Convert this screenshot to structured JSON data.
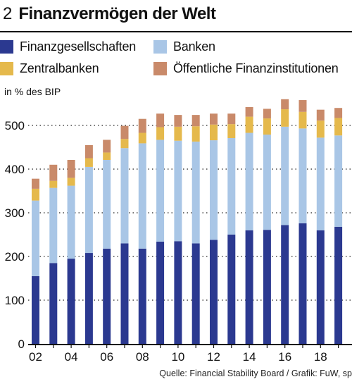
{
  "header": {
    "number": "2",
    "title": "Finanzvermögen der Welt"
  },
  "unit_label": "in % des BIP",
  "source": "Quelle: Financial Stability Board  / Grafik: FuW, sp",
  "chart_data": {
    "type": "bar",
    "stacked": true,
    "title": "Finanzvermögen der Welt",
    "ylabel": "in % des BIP",
    "ylim": [
      0,
      550
    ],
    "yticks": [
      0,
      100,
      200,
      300,
      400,
      500
    ],
    "grid": "horizontal dotted",
    "legend_position": "top",
    "categories": [
      "2002",
      "2003",
      "2004",
      "2005",
      "2006",
      "2007",
      "2008",
      "2009",
      "2010",
      "2011",
      "2012",
      "2013",
      "2014",
      "2015",
      "2016",
      "2017",
      "2018",
      "2019"
    ],
    "x_tick_labels": [
      {
        "index": 0,
        "label": "02"
      },
      {
        "index": 2,
        "label": "04"
      },
      {
        "index": 4,
        "label": "06"
      },
      {
        "index": 6,
        "label": "08"
      },
      {
        "index": 8,
        "label": "10"
      },
      {
        "index": 10,
        "label": "12"
      },
      {
        "index": 12,
        "label": "14"
      },
      {
        "index": 14,
        "label": "16"
      },
      {
        "index": 16,
        "label": "18"
      }
    ],
    "series": [
      {
        "name": "Finanzgesellschaften",
        "color": "#2b3990",
        "values": [
          155,
          185,
          195,
          208,
          218,
          230,
          218,
          234,
          235,
          230,
          238,
          250,
          260,
          261,
          272,
          276,
          260,
          268
        ]
      },
      {
        "name": "Banken",
        "color": "#a9c6e6",
        "values": [
          173,
          172,
          167,
          197,
          203,
          218,
          241,
          233,
          230,
          233,
          228,
          221,
          223,
          218,
          225,
          217,
          212,
          209
        ]
      },
      {
        "name": "Zentralbanken",
        "color": "#e5b94c",
        "values": [
          27,
          16,
          18,
          20,
          17,
          21,
          24,
          29,
          32,
          35,
          36,
          32,
          37,
          37,
          40,
          38,
          39,
          40
        ]
      },
      {
        "name": "Öffentliche Finanzinstitutionen",
        "color": "#c98a6a",
        "values": [
          23,
          37,
          41,
          30,
          29,
          30,
          32,
          31,
          27,
          26,
          25,
          24,
          22,
          22,
          23,
          27,
          25,
          23
        ]
      }
    ]
  }
}
